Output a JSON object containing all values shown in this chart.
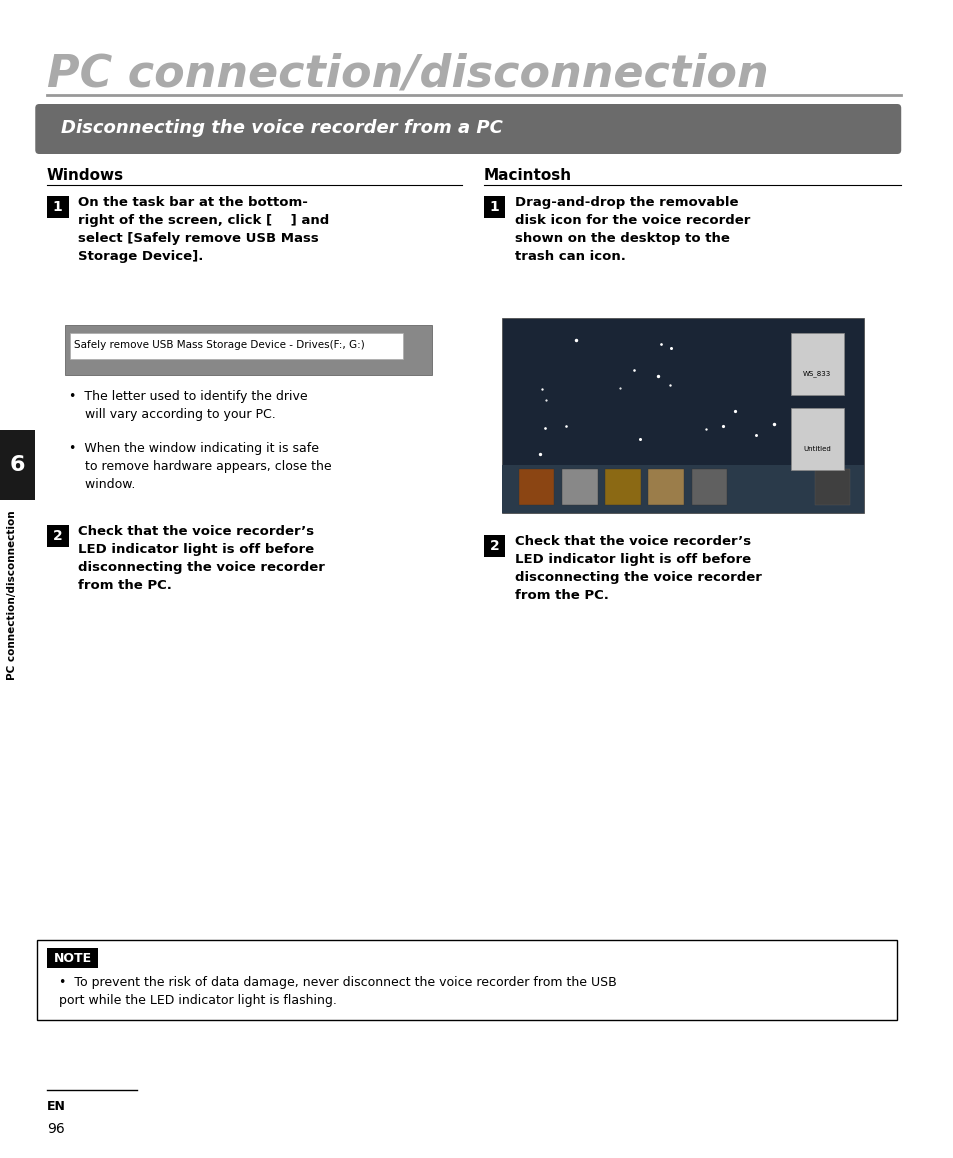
{
  "page_bg": "#ffffff",
  "title": "PC connection/disconnection",
  "title_color": "#aaaaaa",
  "title_fontsize": 32,
  "section_bg": "#6b6b6b",
  "section_text": "Disconnecting the voice recorder from a PC",
  "section_text_color": "#ffffff",
  "section_fontsize": 13,
  "windows_label": "Windows",
  "mac_label": "Macintosh",
  "col_header_fontsize": 11,
  "win_screenshot_text": "Safely remove USB Mass Storage Device - Drives(F:, G:)",
  "note_title": "NOTE",
  "note_text": "To prevent the risk of data damage, never disconnect the voice recorder from the USB\nport while the LED indicator light is flashing.",
  "tab_bg": "#1a1a1a",
  "tab_text": "6",
  "tab_label": "PC connection/disconnection",
  "page_num": "96",
  "en_label": "EN"
}
